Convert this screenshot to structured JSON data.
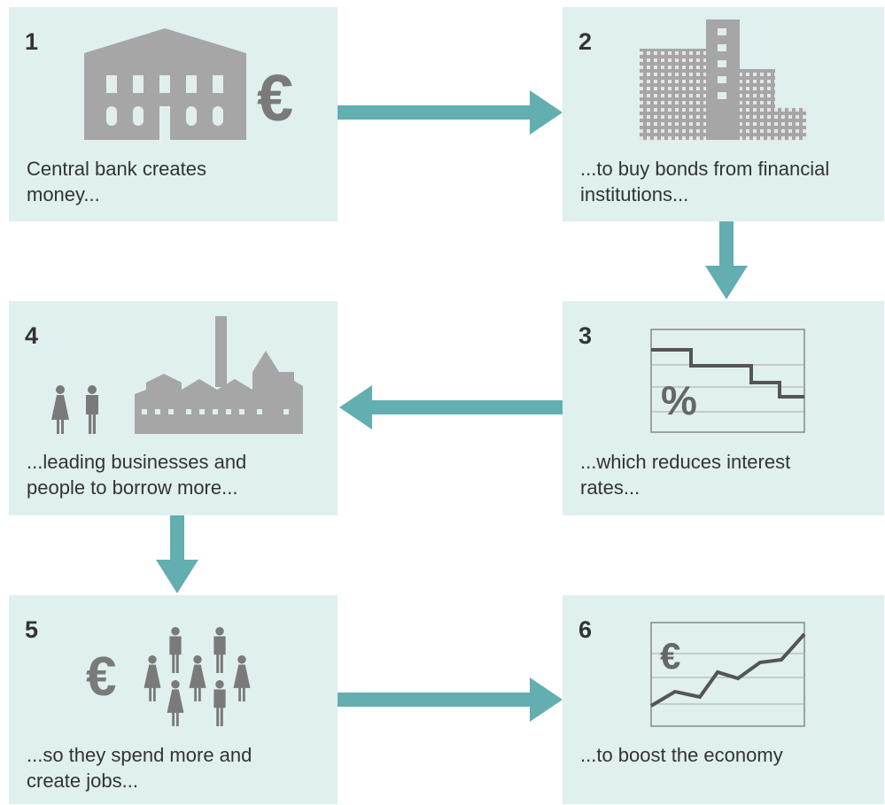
{
  "steps": [
    {
      "number": "1",
      "text": "Central bank creates money...",
      "symbol": "€"
    },
    {
      "number": "2",
      "text": "...to buy bonds from financial institutions..."
    },
    {
      "number": "3",
      "text": "...which reduces interest rates...",
      "symbol": "%"
    },
    {
      "number": "4",
      "text": "...leading businesses and people to borrow more..."
    },
    {
      "number": "5",
      "text": "...so they spend more and create jobs...",
      "symbol": "€"
    },
    {
      "number": "6",
      "text": "...to boost the economy",
      "symbol": "€"
    }
  ]
}
